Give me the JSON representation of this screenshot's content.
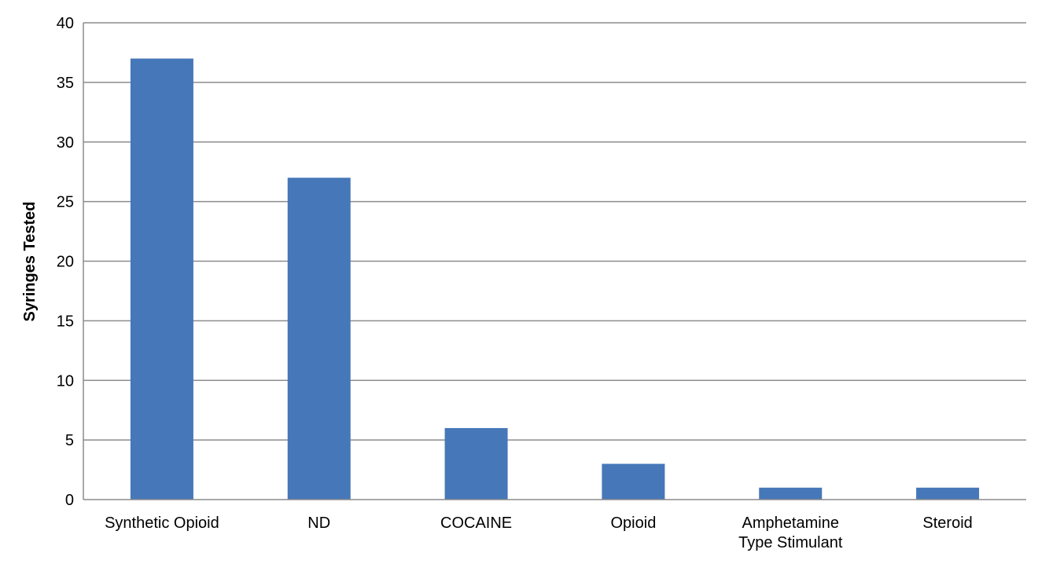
{
  "chart_data": {
    "type": "bar",
    "title": "",
    "xlabel": "",
    "ylabel": "Syringes Tested",
    "categories": [
      [
        "Synthetic Opioid"
      ],
      [
        "ND"
      ],
      [
        "COCAINE"
      ],
      [
        "Opioid"
      ],
      [
        "Amphetamine",
        "Type Stimulant"
      ],
      [
        "Steroid"
      ]
    ],
    "values": [
      37,
      27,
      6,
      3,
      1,
      1
    ],
    "ylim": [
      0,
      40
    ],
    "yticks": [
      0,
      5,
      10,
      15,
      20,
      25,
      30,
      35,
      40
    ],
    "grid": true,
    "legend": "none",
    "bar_color": "#4677b8",
    "grid_color": "#8c8c8c"
  }
}
